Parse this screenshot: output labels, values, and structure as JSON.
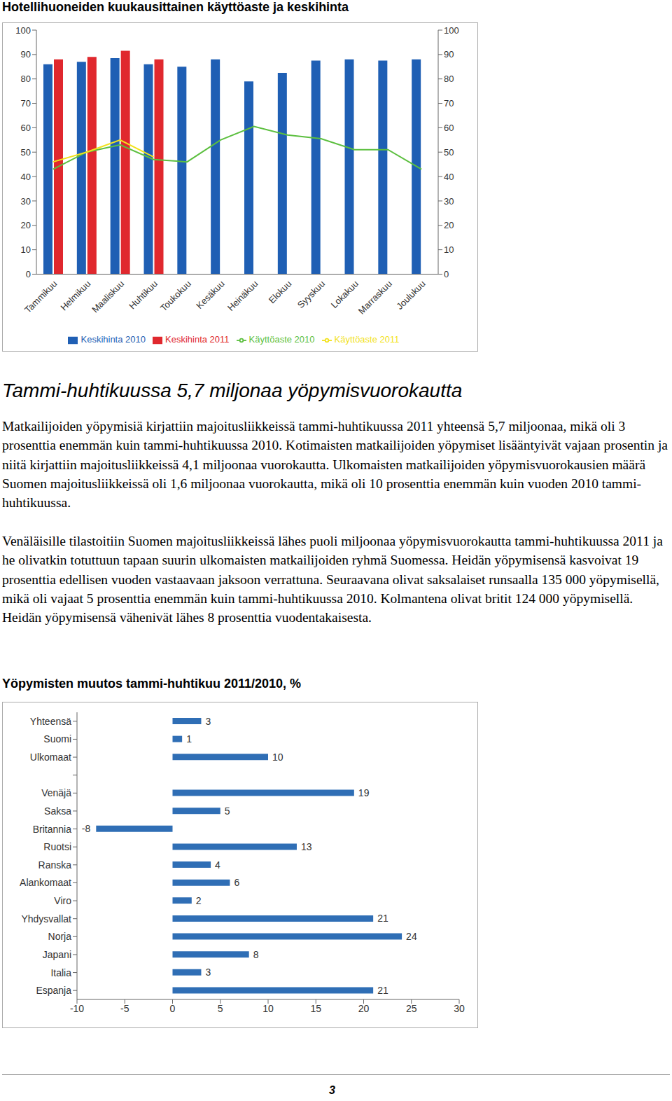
{
  "chart_data": [
    {
      "type": "bar",
      "title": "Hotellihuoneiden kuukausittainen käyttöaste ja keskihinta",
      "categories": [
        "Tammikuu",
        "Helmikuu",
        "Maaliskuu",
        "Huhtikuu",
        "Toukokuu",
        "Kesäkuu",
        "Heinäkuu",
        "Elokuu",
        "Syyskuu",
        "Lokakuu",
        "Marraskuu",
        "Joulukuu"
      ],
      "series": [
        {
          "name": "Keskihinta 2010",
          "type": "bar",
          "color": "#1f5fb4",
          "values": [
            86,
            87,
            88.5,
            86,
            85,
            88,
            79,
            82.5,
            87.5,
            88,
            87.5,
            88
          ]
        },
        {
          "name": "Keskihinta 2011",
          "type": "bar",
          "color": "#e0282e",
          "values": [
            88,
            89,
            91.5,
            88,
            null,
            null,
            null,
            null,
            null,
            null,
            null,
            null
          ]
        },
        {
          "name": "Käyttöaste 2010",
          "type": "line",
          "axis": "y2",
          "color": "#5cbf3f",
          "values": [
            43,
            50,
            53,
            47,
            46,
            55,
            60.5,
            57,
            55.5,
            51,
            51,
            43
          ]
        },
        {
          "name": "Käyttöaste 2011",
          "type": "line",
          "axis": "y2",
          "color": "#f2e21b",
          "values": [
            46,
            50,
            55,
            48,
            null,
            null,
            null,
            null,
            null,
            null,
            null,
            null
          ]
        }
      ],
      "ylim": [
        0,
        100
      ],
      "yticks": [
        0,
        10,
        20,
        30,
        40,
        50,
        60,
        70,
        80,
        90,
        100
      ],
      "y2lim": [
        0,
        100
      ],
      "y2ticks": [
        0,
        10,
        20,
        30,
        40,
        50,
        60,
        70,
        80,
        90,
        100
      ],
      "grid": false,
      "legend": "bottom"
    },
    {
      "type": "bar",
      "title": "Yöpymisten muutos tammi-huhtikuu 2011/2010, %",
      "orientation": "horizontal",
      "categories": [
        "Yhteensä",
        "Suomi",
        "Ulkomaat",
        null,
        "Venäjä",
        "Saksa",
        "Britannia",
        "Ruotsi",
        "Ranska",
        "Alankomaat",
        "Viro",
        "Yhdysvallat",
        "Norja",
        "Japani",
        "Italia",
        "Espanja"
      ],
      "values": [
        3,
        1,
        10,
        null,
        19,
        5,
        -8,
        13,
        4,
        6,
        2,
        21,
        24,
        8,
        3,
        21
      ],
      "color": "#2f6eb5",
      "xlim": [
        -10,
        30
      ],
      "xticks": [
        -10,
        -5,
        0,
        5,
        10,
        15,
        20,
        25,
        30
      ],
      "grid": false,
      "data_labels": true
    }
  ],
  "document": {
    "heading": "Tammi-huhtikuussa 5,7 miljonaa yöpymisvuorokautta",
    "paragraphs": [
      "Matkailijoiden yöpymisiä kirjattiin majoitusliikkeissä tammi-huhtikuussa 2011 yhteensä 5,7 miljoonaa, mikä oli 3 prosenttia enemmän kuin tammi-huhtikuussa 2010. Kotimaisten matkailijoiden yöpymiset lisääntyivät vajaan prosentin ja niitä kirjattiin majoitusliikkeissä 4,1 miljoonaa vuorokautta. Ulkomaisten matkailijoiden yöpymisvuorokausien määrä Suomen majoitusliikkeissä oli 1,6 miljoonaa vuorokautta, mikä oli 10 prosenttia enemmän kuin vuoden 2010 tammi-huhtikuussa.",
      "Venäläisille tilastoitiin Suomen majoitusliikkeissä lähes puoli miljoonaa yöpymisvuorokautta tammi-huhtikuussa 2011 ja he olivatkin totuttuun tapaan suurin ulkomaisten matkailijoiden ryhmä Suomessa. Heidän yöpymisensä kasvoivat 19 prosenttia edellisen vuoden vastaavaan jaksoon verrattuna. Seuraavana olivat saksalaiset runsaalla 135 000 yöpymisellä, mikä oli vajaat 5 prosenttia enemmän kuin tammi-huhtikuussa 2010. Kolmantena olivat britit 124 000 yöpymisellä. Heidän yöpymisensä vähenivät lähes 8 prosenttia vuodentakaisesta."
    ],
    "page_number": "3"
  }
}
